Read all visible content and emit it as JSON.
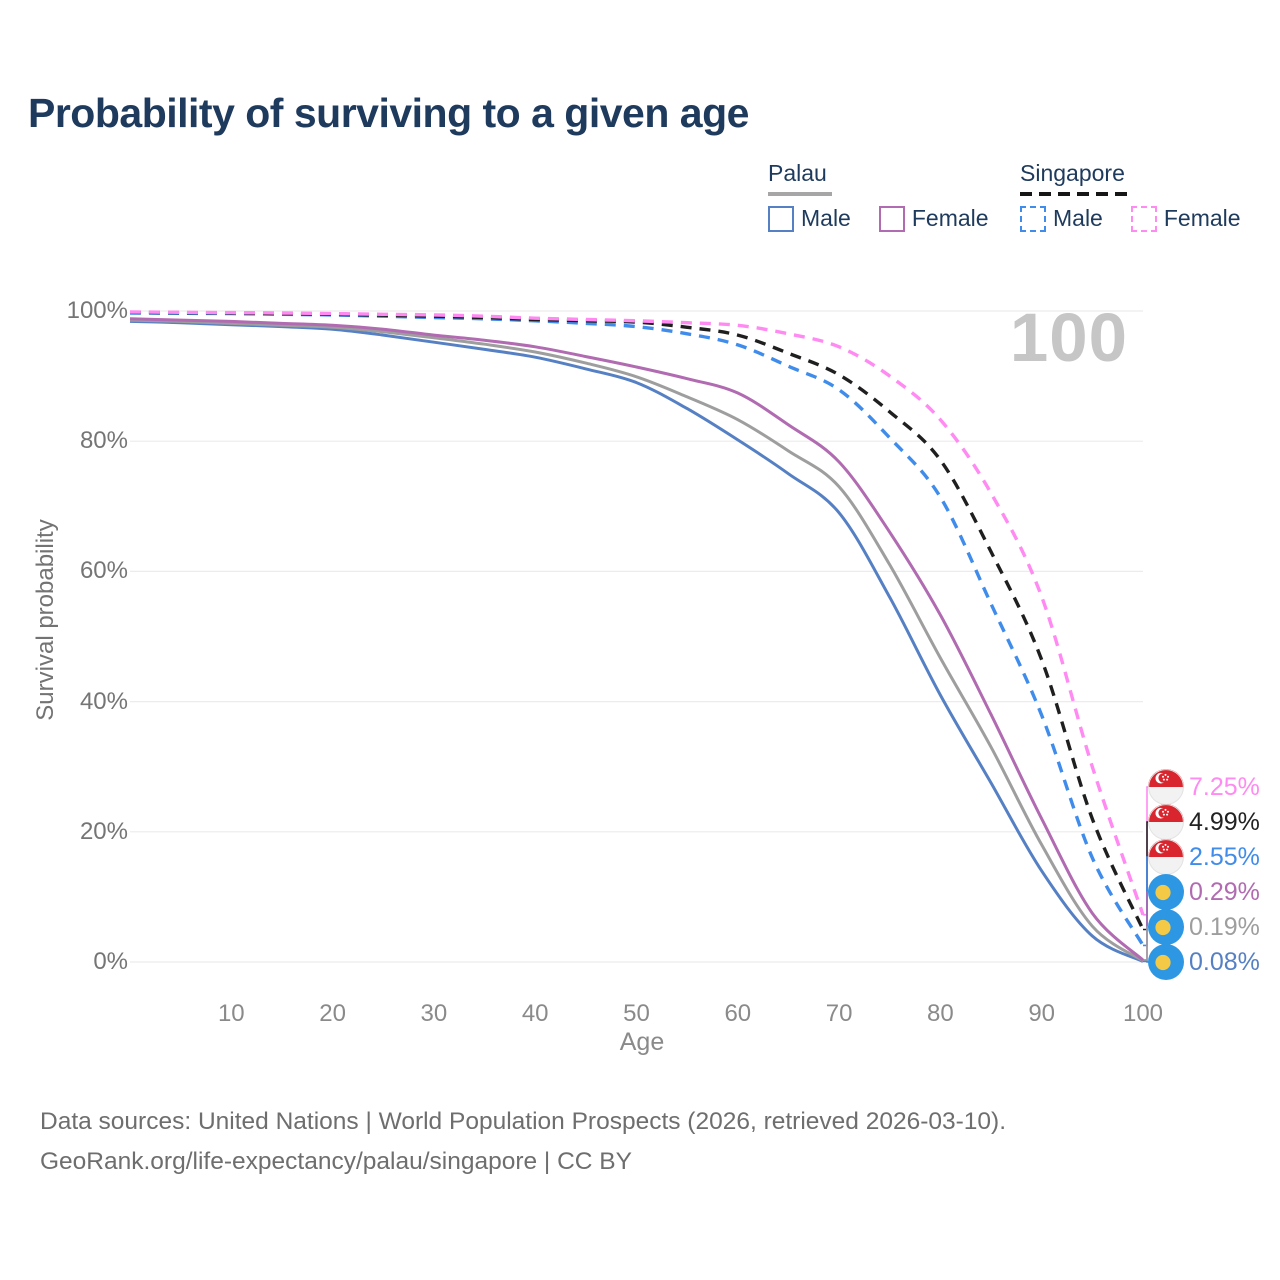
{
  "title": "Probability of surviving to a given age",
  "watermark_age": "100",
  "legend": {
    "palau": {
      "title": "Palau",
      "male": "Male",
      "female": "Female"
    },
    "singapore": {
      "title": "Singapore",
      "male": "Male",
      "female": "Female"
    }
  },
  "y_axis": {
    "label": "Survival probability",
    "ticks": [
      "0%",
      "20%",
      "40%",
      "60%",
      "80%",
      "100%"
    ]
  },
  "x_axis": {
    "label": "Age",
    "ticks": [
      "10",
      "20",
      "30",
      "40",
      "50",
      "60",
      "70",
      "80",
      "90",
      "100"
    ]
  },
  "end_labels": [
    {
      "flag": "singapore",
      "series": "Singapore Female",
      "value": "7.25%",
      "color": "#ff8af2"
    },
    {
      "flag": "singapore",
      "series": "Singapore Total",
      "value": "4.99%",
      "color": "#222222"
    },
    {
      "flag": "singapore",
      "series": "Singapore Male",
      "value": "2.55%",
      "color": "#3f8ceb"
    },
    {
      "flag": "palau",
      "series": "Palau Female",
      "value": "0.29%",
      "color": "#b16bb1"
    },
    {
      "flag": "palau",
      "series": "Palau Total",
      "value": "0.19%",
      "color": "#9e9e9e"
    },
    {
      "flag": "palau",
      "series": "Palau Male",
      "value": "0.08%",
      "color": "#5680c4"
    }
  ],
  "footer": {
    "line1": "Data sources: United Nations | World Population Prospects (2026, retrieved 2026-03-10).",
    "line2": "GeoRank.org/life-expectancy/palau/singapore | CC BY"
  },
  "colors": {
    "palau_male": "#5680c4",
    "palau_female": "#b16bb1",
    "palau_total": "#9e9e9e",
    "singapore_male": "#3f8ceb",
    "singapore_female": "#ff8af2",
    "singapore_total": "#1f1f1f",
    "title_text": "#1e3a5c",
    "axis_text": "#757575",
    "gridline": "#ececec",
    "watermark": "#c6c6c6"
  },
  "chart_data": {
    "type": "line",
    "title": "Probability of surviving to a given age",
    "xlabel": "Age",
    "ylabel": "Survival probability",
    "xlim": [
      0,
      100
    ],
    "ylim": [
      0,
      100
    ],
    "grid": "horizontal-only",
    "legend_position": "top-right",
    "y_tick_percent": [
      0,
      20,
      40,
      60,
      80,
      100
    ],
    "x_ticks": [
      10,
      20,
      30,
      40,
      50,
      60,
      70,
      80,
      90,
      100
    ],
    "ages": [
      0,
      5,
      10,
      15,
      20,
      25,
      30,
      35,
      40,
      45,
      50,
      55,
      60,
      65,
      70,
      75,
      80,
      85,
      90,
      95,
      100
    ],
    "series": [
      {
        "name": "Palau Male",
        "country": "Palau",
        "sex": "male",
        "style": "solid",
        "color": "#5680c4",
        "end_value": 0.08,
        "values": [
          98.4,
          98.2,
          97.9,
          97.6,
          97.2,
          96.3,
          95.2,
          94.1,
          92.9,
          91.1,
          89.0,
          85.0,
          80.2,
          75.0,
          69.0,
          56.0,
          41.0,
          27.5,
          14.0,
          4.0,
          0.08
        ]
      },
      {
        "name": "Palau Total",
        "country": "Palau",
        "sex": "both",
        "style": "solid",
        "color": "#9e9e9e",
        "end_value": 0.19,
        "values": [
          98.6,
          98.4,
          98.1,
          97.8,
          97.5,
          96.8,
          95.9,
          94.9,
          93.7,
          92.0,
          89.9,
          86.8,
          83.3,
          78.5,
          73.0,
          61.0,
          46.7,
          33.0,
          18.0,
          5.5,
          0.19
        ]
      },
      {
        "name": "Palau Female",
        "country": "Palau",
        "sex": "female",
        "style": "solid",
        "color": "#b16bb1",
        "end_value": 0.29,
        "values": [
          98.8,
          98.6,
          98.4,
          98.1,
          97.8,
          97.2,
          96.3,
          95.5,
          94.5,
          93.0,
          91.4,
          89.6,
          87.4,
          82.5,
          76.8,
          66.0,
          53.3,
          38.0,
          22.0,
          7.5,
          0.29
        ]
      },
      {
        "name": "Singapore Male",
        "country": "Singapore",
        "sex": "male",
        "style": "dashed",
        "color": "#3f8ceb",
        "end_value": 2.55,
        "values": [
          99.7,
          99.65,
          99.6,
          99.5,
          99.4,
          99.2,
          99.0,
          98.8,
          98.5,
          98.1,
          97.6,
          96.5,
          94.8,
          91.5,
          87.9,
          80.5,
          71.4,
          55.0,
          37.9,
          16.0,
          2.55
        ]
      },
      {
        "name": "Singapore Total",
        "country": "Singapore",
        "sex": "both",
        "style": "dashed",
        "color": "#1f1f1f",
        "end_value": 4.99,
        "values": [
          99.8,
          99.75,
          99.7,
          99.6,
          99.5,
          99.35,
          99.2,
          99.0,
          98.7,
          98.5,
          98.3,
          97.5,
          96.3,
          93.5,
          90.2,
          84.5,
          77.1,
          63.0,
          46.4,
          22.0,
          4.99
        ]
      },
      {
        "name": "Singapore Female",
        "country": "Singapore",
        "sex": "female",
        "style": "dashed",
        "color": "#ff8af2",
        "end_value": 7.25,
        "values": [
          99.85,
          99.8,
          99.75,
          99.7,
          99.6,
          99.5,
          99.4,
          99.2,
          98.9,
          98.7,
          98.5,
          98.2,
          97.8,
          96.5,
          94.5,
          90.0,
          83.3,
          72.0,
          56.1,
          30.0,
          7.25
        ]
      }
    ]
  }
}
